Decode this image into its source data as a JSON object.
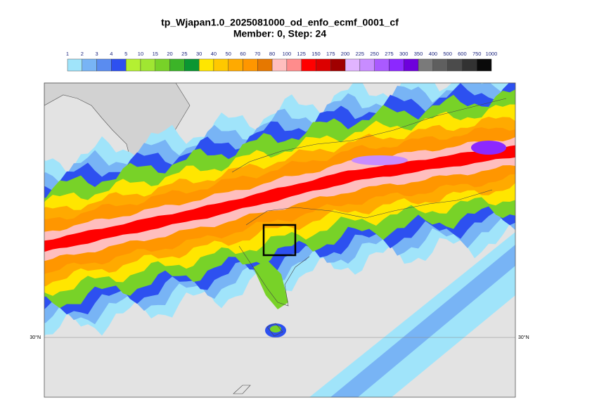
{
  "title": "tp_Wjapan1.0_2025081000_od_enfo_ecmf_0001_cf",
  "subtitle": "Member: 0, Step: 24",
  "colorbar": {
    "levels": [
      1,
      2,
      3,
      4,
      5,
      10,
      15,
      20,
      25,
      30,
      40,
      50,
      60,
      70,
      80,
      100,
      125,
      150,
      175,
      200,
      225,
      250,
      275,
      300,
      350,
      400,
      500,
      600,
      750,
      1000
    ],
    "colors": [
      "#a0e4fa",
      "#78b4f5",
      "#5a8cf0",
      "#2d50f0",
      "#b4f032",
      "#a0e632",
      "#78d228",
      "#3cb428",
      "#0a9632",
      "#ffe600",
      "#ffc800",
      "#ffaa00",
      "#ff9600",
      "#e67800",
      "#ffbebe",
      "#ff8c8c",
      "#ff0000",
      "#dc0000",
      "#a00000",
      "#e1b4ff",
      "#c88cff",
      "#aa5aff",
      "#8c28ff",
      "#6e00dc",
      "#7a7a7a",
      "#5f5f5f",
      "#4b4b4b",
      "#323232",
      "#0a0a0a"
    ]
  },
  "lat_labels": {
    "left": "30°N",
    "right": "30°N"
  }
}
